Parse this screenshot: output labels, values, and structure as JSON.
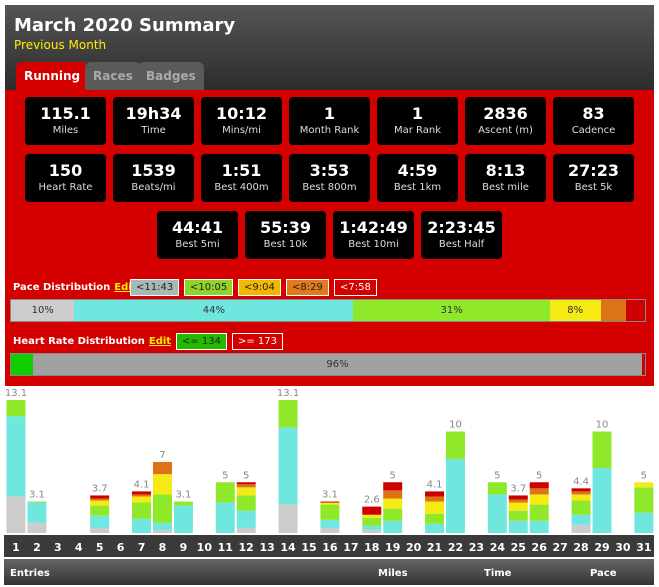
{
  "header": {
    "title": "March 2020 Summary",
    "subtitle": "Previous Month"
  },
  "tabs": [
    "Running",
    "Races",
    "Badges"
  ],
  "stats": [
    {
      "value": "115.1",
      "label": "Miles"
    },
    {
      "value": "19h34",
      "label": "Time"
    },
    {
      "value": "10:12",
      "label": "Mins/mi"
    },
    {
      "value": "1",
      "label": "Month Rank"
    },
    {
      "value": "1",
      "label": "Mar Rank"
    },
    {
      "value": "2836",
      "label": "Ascent (m)"
    },
    {
      "value": "83",
      "label": "Cadence"
    },
    {
      "value": "150",
      "label": "Heart Rate"
    },
    {
      "value": "1539",
      "label": "Beats/mi"
    },
    {
      "value": "1:51",
      "label": "Best 400m"
    },
    {
      "value": "3:53",
      "label": "Best 800m"
    },
    {
      "value": "4:59",
      "label": "Best 1km"
    },
    {
      "value": "8:13",
      "label": "Best mile"
    },
    {
      "value": "27:23",
      "label": "Best 5k"
    },
    {
      "value": "44:41",
      "label": "Best 5mi"
    },
    {
      "value": "55:39",
      "label": "Best 10k"
    },
    {
      "value": "1:42:49",
      "label": "Best 10mi"
    },
    {
      "value": "2:23:45",
      "label": "Best Half"
    }
  ],
  "pace": {
    "title": "Pace Distribution",
    "edit": "Edit",
    "legend": [
      {
        "label": "<11:43",
        "color": "#a9b7b5"
      },
      {
        "label": "<10:05",
        "color": "#8fd42a"
      },
      {
        "label": "<9:04",
        "color": "#f0b800"
      },
      {
        "label": "<8:29",
        "color": "#e07a1a"
      },
      {
        "label": "<7:58",
        "color": "#cc0000"
      }
    ],
    "segments": [
      {
        "value": 10,
        "label": "10%",
        "color": "#cccccc"
      },
      {
        "value": 44,
        "label": "44%",
        "color": "#6fe7df"
      },
      {
        "value": 31,
        "label": "31%",
        "color": "#8fe82a"
      },
      {
        "value": 8,
        "label": "8%",
        "color": "#f5ea14"
      },
      {
        "value": 4,
        "color": "#dc7314"
      },
      {
        "value": 3,
        "color": "#cc0000"
      }
    ]
  },
  "heart": {
    "title": "Heart Rate Distribution",
    "edit": "Edit",
    "legend": [
      {
        "label": "<= 134",
        "color": "#22bb00"
      },
      {
        "label": ">= 173",
        "color": "#cc0000"
      }
    ],
    "segments": [
      {
        "value": 3.5,
        "color": "#11cc00"
      },
      {
        "value": 96,
        "label": "96%",
        "color": "#a0a0a0"
      },
      {
        "value": 0.5,
        "color": "#cc0000"
      }
    ]
  },
  "chart_data": {
    "type": "bar",
    "stacked": true,
    "categories": [
      1,
      2,
      3,
      4,
      5,
      6,
      7,
      8,
      9,
      10,
      11,
      12,
      13,
      14,
      15,
      16,
      17,
      18,
      19,
      20,
      21,
      22,
      23,
      24,
      25,
      26,
      27,
      28,
      29,
      30,
      31
    ],
    "ylim": [
      0,
      13.5
    ],
    "series": [
      {
        "color": "#cccccc",
        "values": [
          3.6,
          1.0,
          0,
          0,
          0.5,
          0,
          0,
          0.3,
          0,
          0,
          0,
          0.5,
          0,
          2.8,
          0,
          0.5,
          0,
          0.3,
          0,
          0,
          0,
          0,
          0,
          0,
          0,
          0,
          0,
          0.8,
          0,
          0,
          0
        ]
      },
      {
        "color": "#6fe7df",
        "values": [
          7.9,
          2.0,
          0,
          0,
          1.2,
          0,
          1.4,
          0.7,
          2.7,
          0,
          3.0,
          1.7,
          0,
          7.6,
          0,
          0.8,
          0,
          0.4,
          1.2,
          0,
          0.9,
          7.3,
          0,
          3.8,
          1.2,
          1.2,
          0,
          1.0,
          6.4,
          0,
          2.0
        ]
      },
      {
        "color": "#8fe82a",
        "values": [
          1.6,
          0.1,
          0,
          0,
          1.0,
          0,
          1.6,
          2.8,
          0.4,
          0,
          2.0,
          1.5,
          0,
          2.7,
          0,
          1.5,
          0,
          0.8,
          1.2,
          0,
          1.0,
          2.7,
          0,
          1.2,
          1.0,
          1.6,
          0,
          1.4,
          3.6,
          0,
          2.5
        ]
      },
      {
        "color": "#f5ea14",
        "values": [
          0,
          0,
          0,
          0,
          0.5,
          0,
          0.6,
          2.0,
          0,
          0,
          0,
          0.8,
          0,
          0,
          0,
          0.2,
          0,
          0.3,
          1.0,
          0,
          1.2,
          0,
          0,
          0,
          0.8,
          1.0,
          0,
          0.6,
          0,
          0,
          0.5
        ]
      },
      {
        "color": "#dc7314",
        "values": [
          0,
          0,
          0,
          0,
          0.2,
          0,
          0.2,
          1.2,
          0,
          0,
          0,
          0.3,
          0,
          0,
          0,
          0,
          0,
          0,
          0.8,
          0,
          0.5,
          0,
          0,
          0,
          0.3,
          0.6,
          0,
          0.3,
          0,
          0,
          0
        ]
      },
      {
        "color": "#cc0000",
        "values": [
          0,
          0,
          0,
          0,
          0.3,
          0,
          0.3,
          0,
          0,
          0,
          0,
          0.2,
          0,
          0,
          0,
          0.1,
          0,
          0.8,
          0.8,
          0,
          0.5,
          0,
          0,
          0,
          0.4,
          0.6,
          0,
          0.3,
          0,
          0,
          0
        ]
      }
    ],
    "totals": [
      13.1,
      3.1,
      null,
      null,
      3.7,
      null,
      4.1,
      7.0,
      3.1,
      null,
      5.0,
      5.0,
      null,
      13.1,
      null,
      3.1,
      null,
      2.6,
      5.0,
      null,
      4.1,
      10.0,
      null,
      5.0,
      3.7,
      5.0,
      null,
      4.4,
      10.0,
      null,
      5.0
    ]
  },
  "footer": [
    "Entries",
    "Miles",
    "Time",
    "Pace"
  ]
}
